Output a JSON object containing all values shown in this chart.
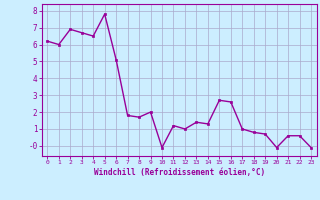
{
  "x": [
    0,
    1,
    2,
    3,
    4,
    5,
    6,
    7,
    8,
    9,
    10,
    11,
    12,
    13,
    14,
    15,
    16,
    17,
    18,
    19,
    20,
    21,
    22,
    23
  ],
  "y": [
    6.2,
    6.0,
    6.9,
    6.7,
    6.5,
    7.8,
    5.1,
    1.8,
    1.7,
    2.0,
    -0.1,
    1.2,
    1.0,
    1.4,
    1.3,
    2.7,
    2.6,
    1.0,
    0.8,
    0.7,
    -0.1,
    0.6,
    0.6,
    -0.1
  ],
  "line_color": "#990099",
  "marker": "s",
  "marker_size": 2.0,
  "line_width": 1.0,
  "bg_color": "#cceeff",
  "grid_color": "#aaaacc",
  "xlabel": "Windchill (Refroidissement éolien,°C)",
  "xlabel_color": "#990099",
  "tick_color": "#990099",
  "label_color": "#990099",
  "ylim": [
    -0.6,
    8.4
  ],
  "xlim": [
    -0.5,
    23.5
  ],
  "yticks": [
    0,
    1,
    2,
    3,
    4,
    5,
    6,
    7,
    8
  ],
  "ytick_labels": [
    "-0",
    "1",
    "2",
    "3",
    "4",
    "5",
    "6",
    "7",
    "8"
  ],
  "xticks": [
    0,
    1,
    2,
    3,
    4,
    5,
    6,
    7,
    8,
    9,
    10,
    11,
    12,
    13,
    14,
    15,
    16,
    17,
    18,
    19,
    20,
    21,
    22,
    23
  ]
}
